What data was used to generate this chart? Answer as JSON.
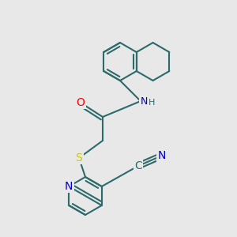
{
  "bg_color": "#e8e8e8",
  "bond_color": "#2d6b6b",
  "bond_width": 1.5,
  "atom_colors": {
    "O": "#ff0000",
    "N": "#0000cc",
    "S": "#cccc00",
    "C": "#2d6b6b"
  },
  "font_size": 9,
  "figsize": [
    3.0,
    3.0
  ],
  "dpi": 100
}
